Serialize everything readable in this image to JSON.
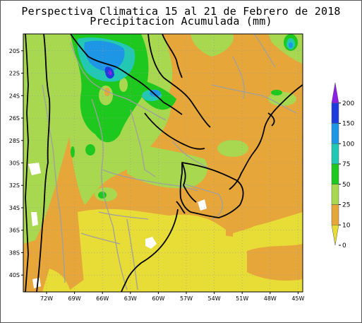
{
  "title_line1": "Perspectiva Climatica 15 al 21 de Febrero de 2018",
  "title_line2": "Precipitacion Acumulada (mm)",
  "map": {
    "lat_ticks": [
      "20S",
      "22S",
      "24S",
      "26S",
      "28S",
      "30S",
      "32S",
      "34S",
      "36S",
      "38S",
      "40S"
    ],
    "lon_ticks": [
      "72W",
      "69W",
      "66W",
      "63W",
      "60W",
      "57W",
      "54W",
      "51W",
      "48W",
      "45W"
    ],
    "lat_range": [
      -41.5,
      -18.5
    ],
    "lon_range": [
      -74.5,
      -44.5
    ],
    "colors": {
      "c0": "#e8dc36",
      "c10": "#e6a63a",
      "c25": "#a8d850",
      "c50": "#1ec81e",
      "c75": "#22c8b4",
      "c100": "#1e96e6",
      "c150": "#1e50dc",
      "c200": "#7a1ee6"
    }
  },
  "legend": {
    "levels": [
      "200",
      "150",
      "100",
      "75",
      "50",
      "25",
      "10",
      "0"
    ],
    "colors": [
      "#8c1ee6",
      "#1e3cdc",
      "#1e96e6",
      "#22c8b4",
      "#1ec81e",
      "#a8d850",
      "#e6a63a",
      "#e8dc36"
    ]
  }
}
